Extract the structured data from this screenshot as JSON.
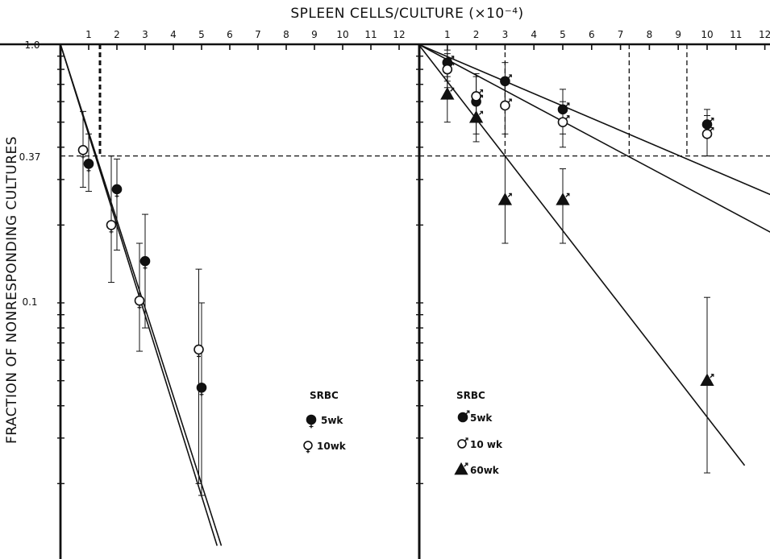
{
  "chart_data": [
    {
      "panel": "left",
      "type": "scatter",
      "title": "SPLEEN CELLS/CULTURE (×10⁻⁴)",
      "ylabel": "FRACTION OF NONRESPONDING CULTURES",
      "yscale": "log",
      "ylim": [
        0.01,
        1.0
      ],
      "xlim": [
        0,
        13
      ],
      "x_ticks": [
        "1",
        "2",
        "3",
        "4",
        "5",
        "6",
        "7",
        "8",
        "9",
        "10",
        "11",
        "12"
      ],
      "y_tick_labels": [
        "1.0",
        "0.37",
        "0.1"
      ],
      "reference_line_y": 0.37,
      "reference_line_x": [
        1.4
      ],
      "legend": {
        "title": "SRBC",
        "entries": [
          "5wk",
          "10wk"
        ],
        "placement": "center-right"
      },
      "series": [
        {
          "name": "5wk",
          "marker": "filled-circle",
          "sex": "female",
          "points": [
            {
              "x": 1.0,
              "y": 0.345,
              "ylo": 0.27,
              "yhi": 0.45
            },
            {
              "x": 2.0,
              "y": 0.275,
              "ylo": 0.16,
              "yhi": 0.36
            },
            {
              "x": 3.0,
              "y": 0.145,
              "ylo": 0.08,
              "yhi": 0.22
            },
            {
              "x": 5.0,
              "y": 0.047,
              "ylo": 0.018,
              "yhi": 0.1
            }
          ],
          "fit": {
            "x0": 0,
            "y0": 1.0,
            "x1": 5.7,
            "y1": 0.0115
          }
        },
        {
          "name": "10wk",
          "marker": "open-circle",
          "sex": "female",
          "points": [
            {
              "x": 0.8,
              "y": 0.39,
              "ylo": 0.28,
              "yhi": 0.55
            },
            {
              "x": 1.8,
              "y": 0.2,
              "ylo": 0.12,
              "yhi": 0.37
            },
            {
              "x": 2.8,
              "y": 0.102,
              "ylo": 0.065,
              "yhi": 0.17
            },
            {
              "x": 4.9,
              "y": 0.066,
              "ylo": 0.02,
              "yhi": 0.135
            }
          ],
          "fit": {
            "x0": 0,
            "y0": 1.0,
            "x1": 5.55,
            "y1": 0.0115
          }
        }
      ]
    },
    {
      "panel": "right",
      "type": "scatter",
      "yscale": "log",
      "ylim": [
        0.01,
        1.0
      ],
      "xlim": [
        0,
        13
      ],
      "x_ticks": [
        "1",
        "2",
        "3",
        "4",
        "5",
        "6",
        "7",
        "8",
        "9",
        "10",
        "11",
        "12"
      ],
      "reference_line_y": 0.37,
      "reference_line_x": [
        3.0,
        7.3,
        9.3
      ],
      "legend": {
        "title": "SRBC",
        "entries": [
          "5wk",
          "10 wk",
          "60wk"
        ],
        "placement": "bottom-center"
      },
      "series": [
        {
          "name": "5wk",
          "marker": "filled-circle",
          "sex": "male",
          "points": [
            {
              "x": 1.0,
              "y": 0.85,
              "ylo": 0.72,
              "yhi": 0.95
            },
            {
              "x": 2.0,
              "y": 0.6,
              "ylo": 0.45,
              "yhi": 0.75
            },
            {
              "x": 3.0,
              "y": 0.72,
              "ylo": 0.58,
              "yhi": 0.85
            },
            {
              "x": 5.0,
              "y": 0.56,
              "ylo": 0.45,
              "yhi": 0.67
            },
            {
              "x": 10.0,
              "y": 0.49,
              "ylo": 0.37,
              "yhi": 0.56
            }
          ],
          "fit": {
            "x0": 0,
            "y0": 1.0,
            "x1": 13.0,
            "y1": 0.24
          }
        },
        {
          "name": "10 wk",
          "marker": "open-circle",
          "sex": "male",
          "points": [
            {
              "x": 1.0,
              "y": 0.8,
              "ylo": 0.68,
              "yhi": 0.92
            },
            {
              "x": 2.0,
              "y": 0.63,
              "ylo": 0.5,
              "yhi": 0.77
            },
            {
              "x": 3.0,
              "y": 0.58,
              "ylo": 0.45,
              "yhi": 0.72
            },
            {
              "x": 5.0,
              "y": 0.5,
              "ylo": 0.4,
              "yhi": 0.6
            },
            {
              "x": 10.0,
              "y": 0.45,
              "ylo": 0.37,
              "yhi": 0.53
            }
          ],
          "fit": {
            "x0": 0,
            "y0": 1.0,
            "x1": 12.7,
            "y1": 0.175
          }
        },
        {
          "name": "60wk",
          "marker": "filled-triangle",
          "sex": "male",
          "points": [
            {
              "x": 1.0,
              "y": 0.64,
              "ylo": 0.5,
              "yhi": 0.75
            },
            {
              "x": 2.0,
              "y": 0.52,
              "ylo": 0.42,
              "yhi": 0.62
            },
            {
              "x": 3.0,
              "y": 0.25,
              "ylo": 0.17,
              "yhi": 0.37
            },
            {
              "x": 5.0,
              "y": 0.25,
              "ylo": 0.17,
              "yhi": 0.33
            },
            {
              "x": 10.0,
              "y": 0.05,
              "ylo": 0.022,
              "yhi": 0.105
            }
          ],
          "fit": {
            "x0": 0,
            "y0": 1.0,
            "x1": 11.3,
            "y1": 0.0235
          }
        }
      ]
    }
  ]
}
